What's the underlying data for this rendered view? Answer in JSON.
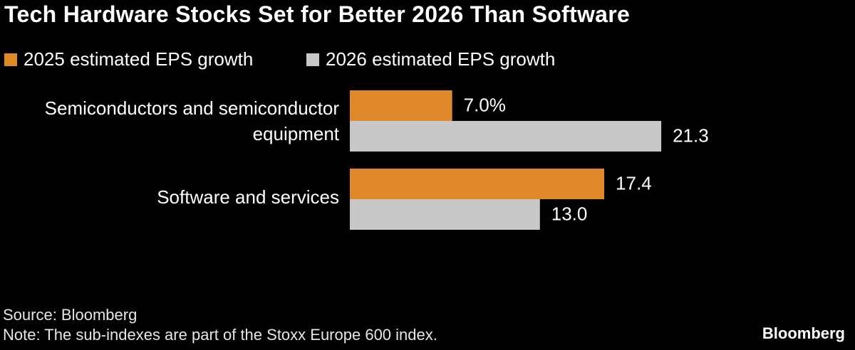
{
  "chart_data": {
    "type": "hbar",
    "title": "Tech Hardware Stocks Set for Better 2026 Than Software",
    "categories": [
      "Semiconductors and semiconductor equipment",
      "Software and services"
    ],
    "series": [
      {
        "name": "2025 estimated EPS growth",
        "color": "#e0892a",
        "values": [
          7.0,
          17.4
        ],
        "value_labels": [
          "7.0%",
          "17.4"
        ]
      },
      {
        "name": "2026 estimated EPS growth",
        "color": "#c8c8c8",
        "values": [
          21.3,
          13.0
        ],
        "value_labels": [
          "21.3",
          "13.0"
        ]
      }
    ],
    "source": "Source: Bloomberg",
    "note": "Note: The sub-indexes are part of the Stoxx Europe 600 index.",
    "brand": "Bloomberg"
  }
}
